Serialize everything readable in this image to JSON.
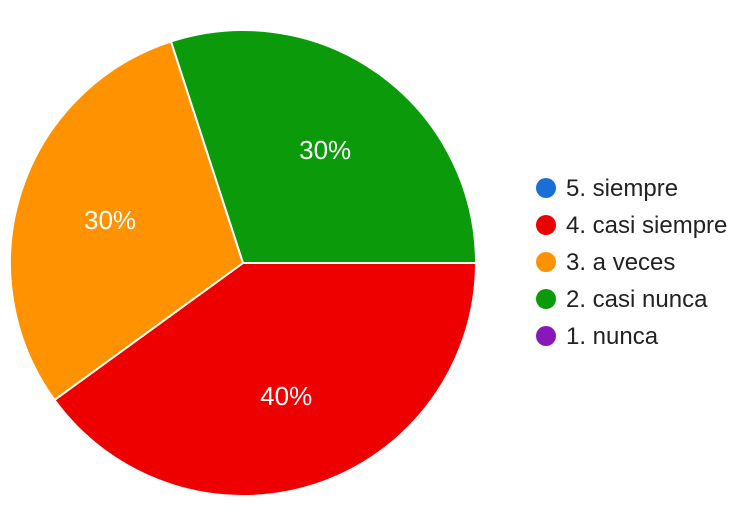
{
  "chart_data": {
    "type": "pie",
    "title": "",
    "legend_position": "right",
    "slices": [
      {
        "label": "5. siempre",
        "value": 0,
        "display": "",
        "color": "#1a6fd6"
      },
      {
        "label": "4. casi siempre",
        "value": 40,
        "display": "40%",
        "color": "#ee0000"
      },
      {
        "label": "3. a veces",
        "value": 30,
        "display": "30%",
        "color": "#ff9200"
      },
      {
        "label": "2. casi nunca",
        "value": 30,
        "display": "30%",
        "color": "#0a9a0a"
      },
      {
        "label": "1. nunca",
        "value": 0,
        "display": "",
        "color": "#8a17b8"
      }
    ]
  }
}
